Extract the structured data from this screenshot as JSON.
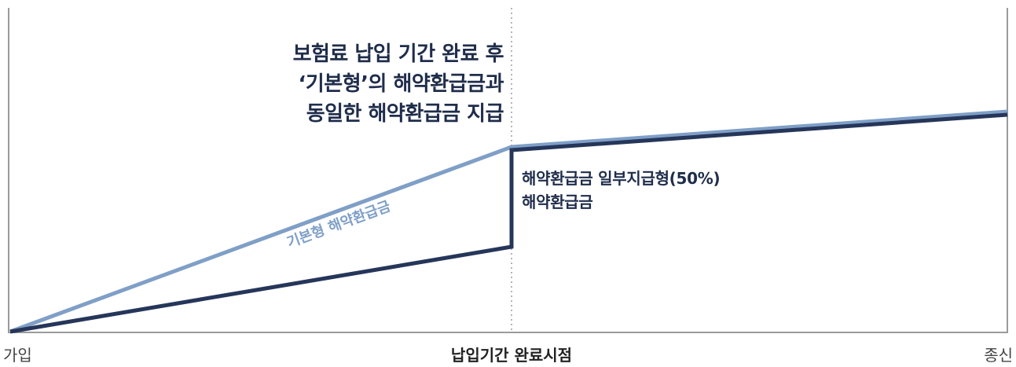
{
  "colors": {
    "partial_line": "#26365a",
    "basic_line": "#7f9fc7",
    "axis": "#9a9a9a",
    "divider": "#b5b5b5"
  },
  "annotations": {
    "headline": [
      "보험료 납입 기간 완료 후",
      "‘기본형’의 해약환급금과",
      "동일한 해약환급금 지급"
    ],
    "partial_label": [
      "해약환급금 일부지급형(50%)",
      "해약환급금"
    ],
    "basic_label": "기본형 해약환급금"
  },
  "x_axis": {
    "start": "가입",
    "middle": "납입기간 완료시점",
    "end": "종신"
  }
}
